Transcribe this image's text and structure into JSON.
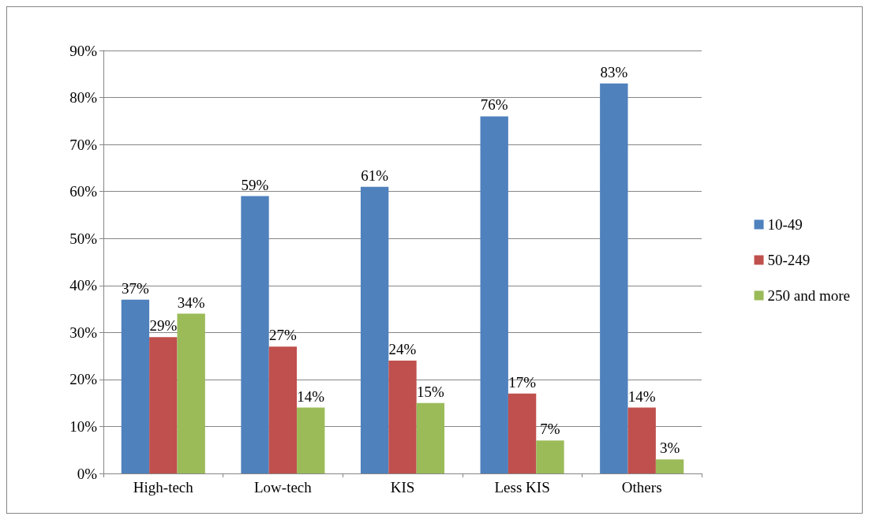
{
  "chart_data": {
    "type": "bar",
    "categories": [
      "High-tech",
      "Low-tech",
      "KIS",
      "Less KIS",
      "Others"
    ],
    "series": [
      {
        "name": "10-49",
        "color": "#4f81bd",
        "values": [
          37,
          59,
          61,
          76,
          83
        ],
        "value_labels": [
          "37%",
          "59%",
          "61%",
          "76%",
          "83%"
        ]
      },
      {
        "name": "50-249",
        "color": "#c0504d",
        "values": [
          29,
          27,
          24,
          17,
          14
        ],
        "value_labels": [
          "29%",
          "27%",
          "24%",
          "17%",
          "14%"
        ]
      },
      {
        "name": "250 and more",
        "color": "#9bbb59",
        "values": [
          34,
          14,
          15,
          7,
          3
        ],
        "value_labels": [
          "34%",
          "14%",
          "15%",
          "7%",
          "3%"
        ]
      }
    ],
    "ylim": [
      0,
      90
    ],
    "yticks": [
      {
        "value": 0,
        "label": "0%"
      },
      {
        "value": 10,
        "label": "10%"
      },
      {
        "value": 20,
        "label": "20%"
      },
      {
        "value": 30,
        "label": "30%"
      },
      {
        "value": 40,
        "label": "40%"
      },
      {
        "value": 50,
        "label": "50%"
      },
      {
        "value": 60,
        "label": "60%"
      },
      {
        "value": 70,
        "label": "70%"
      },
      {
        "value": 80,
        "label": "80%"
      },
      {
        "value": 90,
        "label": "90%"
      }
    ],
    "grid": "y",
    "legend": "right"
  }
}
